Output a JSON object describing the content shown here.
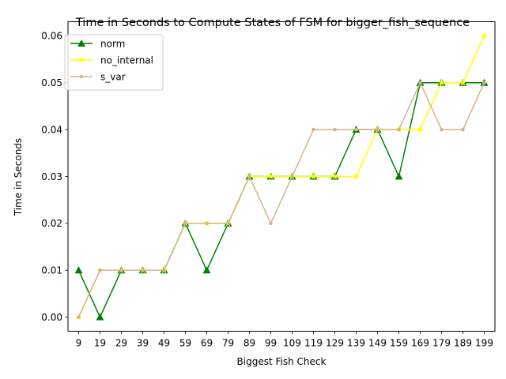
{
  "chart_data": {
    "type": "line",
    "title": "Time in Seconds to Compute States of FSM for bigger_fish_sequence",
    "xlabel": "Biggest Fish Check",
    "ylabel": "Time in Seconds",
    "x": [
      9,
      19,
      29,
      39,
      49,
      59,
      69,
      79,
      89,
      99,
      109,
      119,
      129,
      139,
      149,
      159,
      169,
      179,
      189,
      199
    ],
    "ylim": [
      -0.003,
      0.063
    ],
    "yticks": [
      0.0,
      0.01,
      0.02,
      0.03,
      0.04,
      0.05,
      0.06
    ],
    "ytick_labels": [
      "0.00",
      "0.01",
      "0.02",
      "0.03",
      "0.04",
      "0.05",
      "0.06"
    ],
    "grid": false,
    "legend_position": "upper-left",
    "series": [
      {
        "name": "norm",
        "color": "#008000",
        "marker": "triangle",
        "values": [
          0.01,
          0.0,
          0.01,
          0.01,
          0.01,
          0.02,
          0.01,
          0.02,
          0.03,
          0.03,
          0.03,
          0.03,
          0.03,
          0.04,
          0.04,
          0.03,
          0.05,
          0.05,
          0.05,
          0.05
        ]
      },
      {
        "name": "no_internal",
        "color": "#ffff00",
        "marker": "star",
        "values": [
          0.0,
          0.01,
          0.01,
          0.01,
          0.01,
          0.02,
          0.02,
          0.02,
          0.03,
          0.03,
          0.03,
          0.03,
          0.03,
          0.03,
          0.04,
          0.04,
          0.04,
          0.05,
          0.05,
          0.06
        ]
      },
      {
        "name": "s_var",
        "color": "#d2b48c",
        "marker": "point",
        "values": [
          0.0,
          0.01,
          0.01,
          0.01,
          0.01,
          0.02,
          0.02,
          0.02,
          0.03,
          0.02,
          0.03,
          0.04,
          0.04,
          0.04,
          0.04,
          0.04,
          0.05,
          0.04,
          0.04,
          0.05
        ]
      }
    ]
  }
}
